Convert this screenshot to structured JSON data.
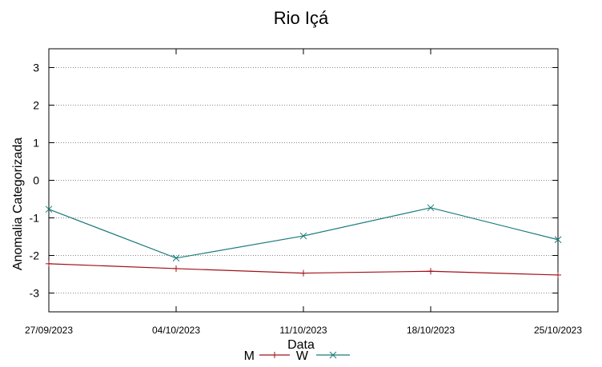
{
  "chart_data": {
    "type": "line",
    "title": "Rio Içá",
    "xlabel": "Data",
    "ylabel": "Anomalia Categorizada",
    "categories": [
      "27/09/2023",
      "04/10/2023",
      "11/10/2023",
      "18/10/2023",
      "25/10/2023"
    ],
    "ylim": [
      -3.5,
      3.5
    ],
    "yticks": [
      3,
      2,
      1,
      0,
      -1,
      -2,
      -3
    ],
    "grid": true,
    "legend_position": "bottom-center",
    "series": [
      {
        "name": "M",
        "color": "#a0101a",
        "marker": "plus",
        "values": [
          -2.22,
          -2.35,
          -2.47,
          -2.42,
          -2.52
        ]
      },
      {
        "name": "W",
        "color": "#1a7a7a",
        "marker": "x",
        "values": [
          -0.77,
          -2.07,
          -1.48,
          -0.73,
          -1.58
        ]
      }
    ]
  }
}
